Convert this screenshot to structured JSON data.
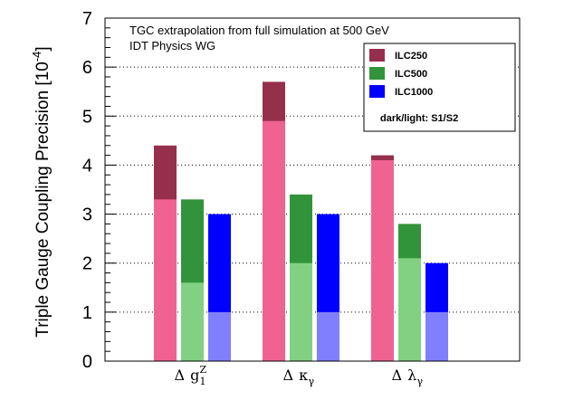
{
  "chart_data": {
    "type": "bar",
    "title": "",
    "annotations": [
      "TGC extrapolation from full simulation at 500 GeV",
      "IDT Physics WG"
    ],
    "ylabel": {
      "main": "Triple Gauge Coupling Precision [10",
      "exponent": "-4",
      "close": "]"
    },
    "xlabel": "",
    "ylim": [
      0,
      7
    ],
    "yticks": [
      "0",
      "1",
      "2",
      "3",
      "4",
      "5",
      "6",
      "7"
    ],
    "grid": "horizontal dotted at each major tick",
    "categories": [
      {
        "delta": "Δ",
        "symbol": "g",
        "sub": "1",
        "sup": "Z"
      },
      {
        "delta": "Δ",
        "symbol": "κ",
        "sub": "γ",
        "sup": ""
      },
      {
        "delta": "Δ",
        "symbol": "λ",
        "sub": "γ",
        "sup": ""
      }
    ],
    "series": [
      {
        "name": "ILC250",
        "color_s1": "#962F4C",
        "color_s2": "#F06292",
        "s1": [
          4.4,
          5.7,
          4.2
        ],
        "s2": [
          3.3,
          4.9,
          4.1
        ]
      },
      {
        "name": "ILC500",
        "color_s1": "#32943A",
        "color_s2": "#82D182",
        "s1": [
          3.3,
          3.4,
          2.8
        ],
        "s2": [
          1.6,
          2.0,
          2.1
        ]
      },
      {
        "name": "ILC1000",
        "color_s1": "#0000FF",
        "color_s2": "#8080FF",
        "s1": [
          3.0,
          3.0,
          2.0
        ],
        "s2": [
          1.0,
          1.0,
          1.0
        ]
      }
    ],
    "legend": {
      "position": "top-right",
      "entries": [
        "ILC250",
        "ILC500",
        "ILC1000"
      ],
      "note": "dark/light: S1/S2"
    }
  }
}
